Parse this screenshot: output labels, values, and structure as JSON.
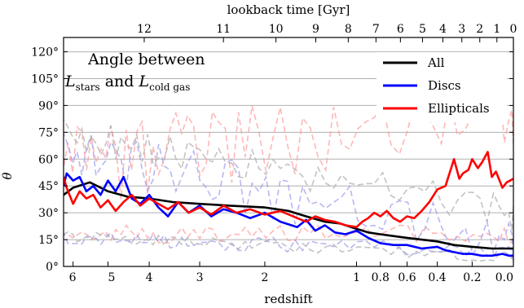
{
  "chart_data": {
    "type": "line",
    "ylabel": "θ",
    "xlabel": "redshift",
    "x2label": "lookback time [Gyr]",
    "annotation": {
      "line1": "Angle between",
      "line2_prefix": "L",
      "line2_sub1": "stars",
      "line2_mid": " and ",
      "line2_prefix2": "L",
      "line2_sub2": "cold gas"
    },
    "ylim": [
      0,
      128
    ],
    "yticks": [
      0,
      15,
      30,
      45,
      60,
      75,
      90,
      105,
      120
    ],
    "ytick_labels": [
      "0°",
      "15°",
      "30°",
      "45°",
      "60°",
      "75°",
      "90°",
      "105°",
      "120°"
    ],
    "xticks": [
      6,
      5,
      4,
      3,
      2,
      1,
      0.8,
      0.6,
      0.4,
      0.2,
      0.0
    ],
    "xtick_labels": [
      "6",
      "5",
      "4",
      "3",
      "2",
      "1",
      "0.8",
      "0.6",
      "0.4",
      "0.2",
      "0.0"
    ],
    "x2ticks": [
      12,
      11,
      10,
      9,
      8,
      7,
      6,
      5,
      4,
      3,
      2,
      1,
      0
    ],
    "x2tick_labels": [
      "12",
      "11",
      "10",
      "9",
      "8",
      "7",
      "6",
      "5",
      "4",
      "3",
      "2",
      "1",
      "0"
    ],
    "grid": true,
    "legend_position": "top-right",
    "colors": {
      "All": "#000000",
      "Discs": "#0000ff",
      "Ellipticals": "#ff0000"
    },
    "series": [
      {
        "name": "All",
        "x": [
          6.3,
          6.0,
          5.5,
          5.0,
          4.5,
          4.0,
          3.5,
          3.0,
          2.5,
          2.0,
          1.7,
          1.5,
          1.3,
          1.15,
          1.0,
          0.9,
          0.8,
          0.7,
          0.6,
          0.5,
          0.4,
          0.3,
          0.2,
          0.1,
          0.05,
          0.0
        ],
        "y": [
          40,
          44,
          47,
          42,
          39,
          38,
          36,
          35,
          34,
          33,
          31,
          28,
          25,
          24,
          21,
          19,
          18,
          17,
          16,
          15,
          14,
          12,
          11,
          10,
          10,
          10
        ]
      },
      {
        "name": "Discs",
        "x": [
          6.3,
          6.2,
          6.0,
          5.8,
          5.6,
          5.4,
          5.2,
          5.0,
          4.8,
          4.6,
          4.4,
          4.2,
          4.0,
          3.8,
          3.6,
          3.4,
          3.2,
          3.0,
          2.8,
          2.6,
          2.4,
          2.2,
          2.0,
          1.8,
          1.6,
          1.5,
          1.4,
          1.3,
          1.2,
          1.1,
          1.0,
          0.9,
          0.8,
          0.7,
          0.6,
          0.5,
          0.4,
          0.35,
          0.3,
          0.25,
          0.2,
          0.15,
          0.1,
          0.05,
          0.02,
          0.0
        ],
        "y": [
          45,
          52,
          48,
          50,
          42,
          45,
          40,
          48,
          42,
          50,
          38,
          35,
          40,
          33,
          28,
          36,
          30,
          34,
          28,
          32,
          30,
          27,
          30,
          25,
          22,
          26,
          20,
          23,
          19,
          18,
          20,
          16,
          13,
          12,
          12,
          10,
          11,
          9,
          8,
          7,
          7,
          6,
          6,
          7,
          6,
          6
        ]
      },
      {
        "name": "Ellipticals",
        "x": [
          6.3,
          6.2,
          6.0,
          5.8,
          5.6,
          5.4,
          5.2,
          5.0,
          4.8,
          4.6,
          4.4,
          4.2,
          4.0,
          3.8,
          3.6,
          3.4,
          3.2,
          3.0,
          2.8,
          2.6,
          2.4,
          2.2,
          2.0,
          1.8,
          1.6,
          1.5,
          1.4,
          1.3,
          1.2,
          1.1,
          1.0,
          0.95,
          0.9,
          0.85,
          0.8,
          0.75,
          0.7,
          0.65,
          0.6,
          0.55,
          0.5,
          0.45,
          0.4,
          0.35,
          0.3,
          0.27,
          0.25,
          0.22,
          0.2,
          0.17,
          0.15,
          0.12,
          0.1,
          0.08,
          0.05,
          0.03,
          0.0
        ],
        "y": [
          50,
          44,
          35,
          42,
          38,
          40,
          33,
          37,
          31,
          36,
          40,
          34,
          38,
          35,
          32,
          36,
          30,
          33,
          29,
          34,
          30,
          32,
          29,
          31,
          27,
          25,
          28,
          26,
          25,
          23,
          22,
          25,
          27,
          30,
          28,
          31,
          27,
          25,
          28,
          27,
          31,
          36,
          43,
          45,
          60,
          49,
          52,
          54,
          60,
          55,
          58,
          64,
          50,
          53,
          44,
          47,
          49
        ]
      }
    ]
  }
}
